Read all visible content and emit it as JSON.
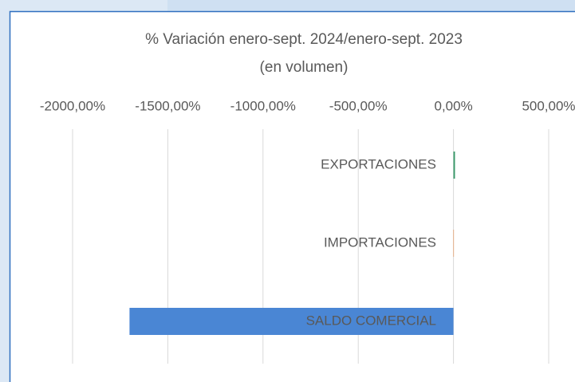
{
  "chart_data": {
    "type": "hbar",
    "title": "% Variación enero-sept. 2024/enero-sept. 2023",
    "subtitle": "(en volumen)",
    "categories": [
      "EXPORTACIONES",
      "IMPORTACIONES",
      "SALDO COMERCIAL"
    ],
    "values": [
      8,
      1,
      -1701
    ],
    "colors": [
      "#3a9a6a",
      "#ed7d31",
      "#4a86d4"
    ],
    "xlim": [
      -2000,
      500
    ],
    "xticks": [
      {
        "value": -2000,
        "label": "-2000,00%"
      },
      {
        "value": -1500,
        "label": "-1500,00%"
      },
      {
        "value": -1000,
        "label": "-1000,00%"
      },
      {
        "value": -500,
        "label": "-500,00%"
      },
      {
        "value": 0,
        "label": "0,00%"
      },
      {
        "value": 500,
        "label": "500,00%"
      }
    ],
    "grid": true
  }
}
